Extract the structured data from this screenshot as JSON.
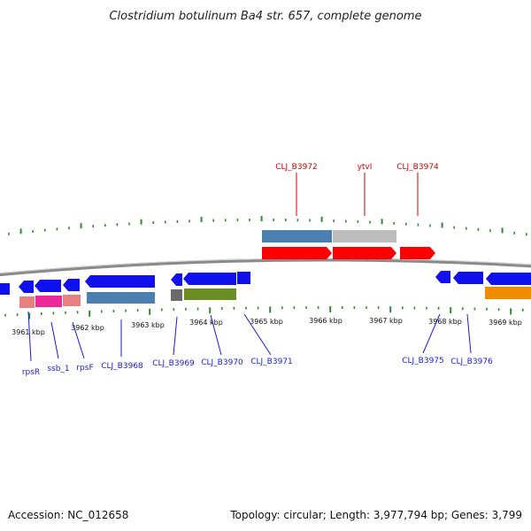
{
  "title": "Clostridium botulinum Ba4 str. 657, complete genome",
  "footer": {
    "accession": "Accession: NC_012658",
    "summary": "Topology: circular; Length: 3,977,794 bp; Genes: 3,799"
  },
  "colors": {
    "backbone": "#8a8a8a",
    "tick": "#2e8b2e",
    "cds_forward": "#ff0000",
    "cds_reverse": "#1010ee",
    "label_forward": "#cc0000",
    "label_reverse": "#1a1acc",
    "blue_feature": "#4a7fb0",
    "gray_feature": "#bdbdbd",
    "pink_feature": "#e88080",
    "magenta_feature": "#ee2a9a",
    "olive_feature": "#6b8e23",
    "dark_gray_feature": "#6a6a6a",
    "orange_feature": "#f08c00"
  },
  "scale_labels": [
    "3961 kbp",
    "3962 kbp",
    "3963 kbp",
    "3964 kbp",
    "3965 kbp",
    "3966 kbp",
    "3967 kbp",
    "3968 kbp",
    "3969 kbp"
  ],
  "forward_labels": [
    "CLJ_B3972",
    "ytvI",
    "CLJ_B3974"
  ],
  "reverse_labels": [
    "rpsR",
    "ssb_1",
    "rpsF",
    "CLJ_B3968",
    "CLJ_B3969",
    "CLJ_B3970",
    "CLJ_B3971",
    "CLJ_B3975",
    "CLJ_B3976"
  ]
}
